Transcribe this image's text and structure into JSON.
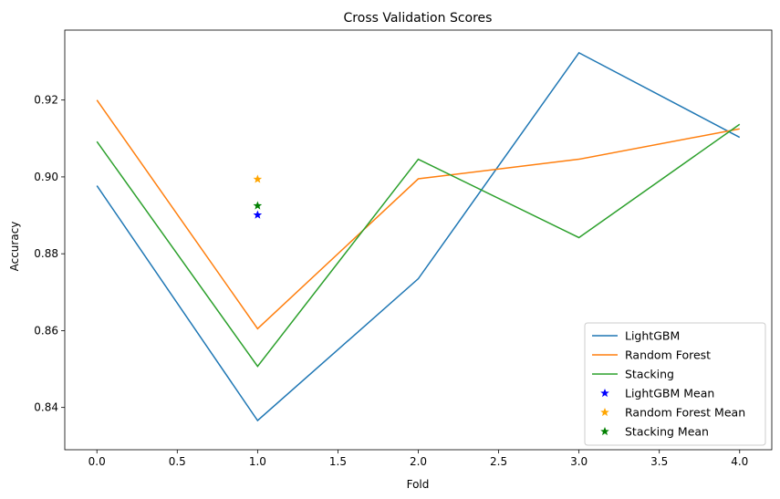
{
  "chart_data": {
    "type": "line",
    "title": "Cross Validation Scores",
    "xlabel": "Fold",
    "ylabel": "Accuracy",
    "xlim": [
      -0.2,
      4.2
    ],
    "ylim": [
      0.829,
      0.9382
    ],
    "xticks": [
      0.0,
      0.5,
      1.0,
      1.5,
      2.0,
      2.5,
      3.0,
      3.5,
      4.0
    ],
    "xtick_labels": [
      "0.0",
      "0.5",
      "1.0",
      "1.5",
      "2.0",
      "2.5",
      "3.0",
      "3.5",
      "4.0"
    ],
    "yticks": [
      0.84,
      0.86,
      0.88,
      0.9,
      0.92
    ],
    "ytick_labels": [
      "0.84",
      "0.86",
      "0.88",
      "0.90",
      "0.92"
    ],
    "grid": false,
    "legend_position": "lower-right",
    "x": [
      0,
      1,
      2,
      3,
      4
    ],
    "series": [
      {
        "name": "LightGBM",
        "color": "#1f77b4",
        "values": [
          0.8977,
          0.8366,
          0.8735,
          0.9323,
          0.9103
        ]
      },
      {
        "name": "Random Forest",
        "color": "#ff7f0e",
        "values": [
          0.92,
          0.8605,
          0.8995,
          0.9046,
          0.9125
        ]
      },
      {
        "name": "Stacking",
        "color": "#2ca02c",
        "values": [
          0.9092,
          0.8507,
          0.9046,
          0.8842,
          0.9137
        ]
      }
    ],
    "mean_markers": [
      {
        "name": "LightGBM Mean",
        "color": "#0000ff",
        "x": 1,
        "y": 0.8901
      },
      {
        "name": "Random Forest Mean",
        "color": "#ffa500",
        "x": 1,
        "y": 0.8994
      },
      {
        "name": "Stacking Mean",
        "color": "#008000",
        "x": 1,
        "y": 0.8925
      }
    ]
  }
}
